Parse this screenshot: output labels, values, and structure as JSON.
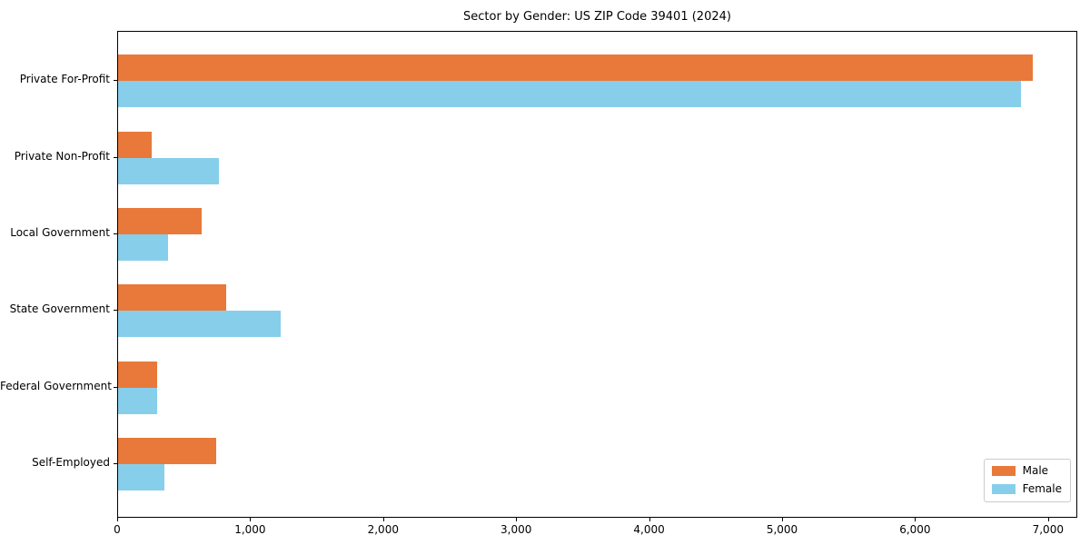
{
  "title": "Sector by Gender: US ZIP Code 39401 (2024)",
  "colors": {
    "male": "#E8793A",
    "female": "#87CEEB",
    "spine": "#000000",
    "text": "#000000",
    "legend_border": "#CCCCCC",
    "background": "#FFFFFF"
  },
  "legend": {
    "items": [
      {
        "label": "Male",
        "color": "#E8793A"
      },
      {
        "label": "Female",
        "color": "#87CEEB"
      }
    ],
    "position": "lower right"
  },
  "chart_data": {
    "type": "bar",
    "orientation": "horizontal",
    "title": "Sector by Gender: US ZIP Code 39401 (2024)",
    "categories": [
      "Private For-Profit",
      "Private Non-Profit",
      "Local Government",
      "State Government",
      "Federal Government",
      "Self-Employed"
    ],
    "series": [
      {
        "name": "Male",
        "color": "#E8793A",
        "values": [
          6880,
          255,
          625,
          810,
          295,
          735
        ]
      },
      {
        "name": "Female",
        "color": "#87CEEB",
        "values": [
          6790,
          755,
          375,
          1220,
          290,
          345
        ]
      }
    ],
    "x_ticks": [
      0,
      1000,
      2000,
      3000,
      4000,
      5000,
      6000,
      7000
    ],
    "x_tick_labels": [
      "0",
      "1,000",
      "2,000",
      "3,000",
      "4,000",
      "5,000",
      "6,000",
      "7,000"
    ],
    "xlim": [
      0,
      7220
    ],
    "xlabel": "",
    "ylabel": "",
    "grid": false,
    "legend_position": "lower right"
  }
}
